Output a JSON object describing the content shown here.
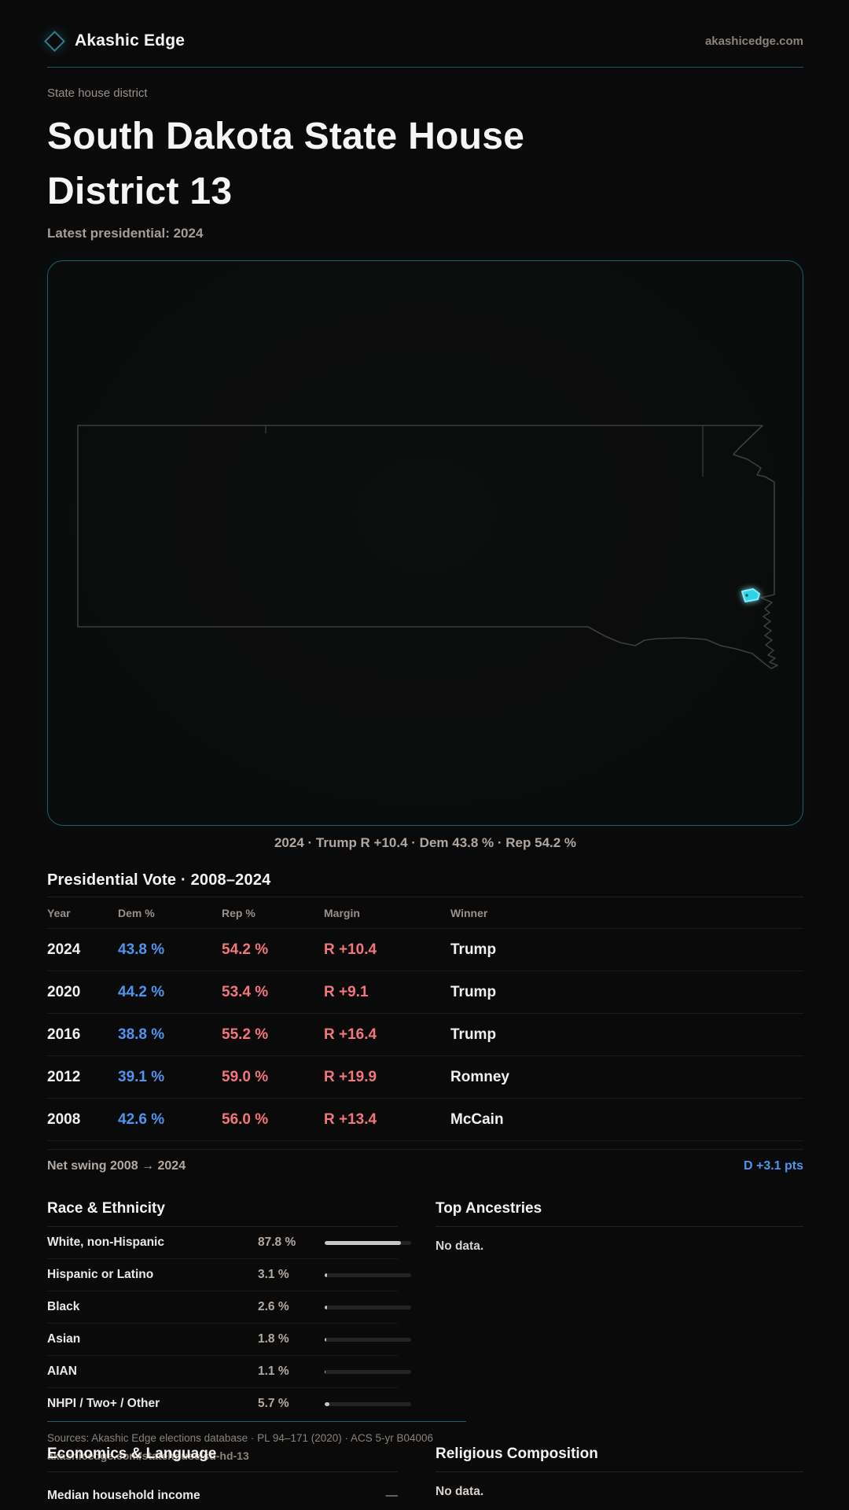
{
  "colors": {
    "background": "#0a0a0b",
    "accent_teal": "#1f5e6c",
    "district_highlight": "#2bd4ea",
    "dem_blue": "#4d95ee",
    "rep_red": "#f3767d"
  },
  "header": {
    "brand": "Akashic Edge",
    "site": "akashicedge.com"
  },
  "hero": {
    "eyebrow": "State house district",
    "title": "South Dakota State House District 13",
    "subtitle": "Latest presidential: 2024"
  },
  "map": {
    "caption": "2024 · Trump R +10.4 · Dem 43.8 % · Rep 54.2 %"
  },
  "presidential": {
    "heading": "Presidential Vote · 2008–2024",
    "columns": {
      "year": "Year",
      "dem": "Dem %",
      "rep": "Rep %",
      "margin": "Margin",
      "winner": "Winner"
    },
    "rows": [
      {
        "year": "2024",
        "dem": "43.8 %",
        "rep": "54.2 %",
        "margin": "R +10.4",
        "winner": "Trump"
      },
      {
        "year": "2020",
        "dem": "44.2 %",
        "rep": "53.4 %",
        "margin": "R +9.1",
        "winner": "Trump"
      },
      {
        "year": "2016",
        "dem": "38.8 %",
        "rep": "55.2 %",
        "margin": "R +16.4",
        "winner": "Trump"
      },
      {
        "year": "2012",
        "dem": "39.1 %",
        "rep": "59.0 %",
        "margin": "R +19.9",
        "winner": "Romney"
      },
      {
        "year": "2008",
        "dem": "42.6 %",
        "rep": "56.0 %",
        "margin": "R +13.4",
        "winner": "McCain"
      }
    ],
    "net_swing_label": "Net swing 2008 → 2024",
    "net_swing_value": "D +3.1 pts"
  },
  "race": {
    "heading": "Race & Ethnicity",
    "rows": [
      {
        "label": "White, non-Hispanic",
        "value": "87.8 %",
        "pct": 87.8
      },
      {
        "label": "Hispanic or Latino",
        "value": "3.1 %",
        "pct": 3.1
      },
      {
        "label": "Black",
        "value": "2.6 %",
        "pct": 2.6
      },
      {
        "label": "Asian",
        "value": "1.8 %",
        "pct": 1.8
      },
      {
        "label": "AIAN",
        "value": "1.1 %",
        "pct": 1.1
      },
      {
        "label": "NHPI / Two+ / Other",
        "value": "5.7 %",
        "pct": 5.7
      }
    ]
  },
  "ancestries": {
    "heading": "Top Ancestries",
    "empty": "No data."
  },
  "economics": {
    "heading": "Economics & Language",
    "rows": [
      {
        "label": "Median household income",
        "value": "—"
      }
    ]
  },
  "religion": {
    "heading": "Religious Composition",
    "empty": "No data."
  },
  "footer": {
    "sources": "Sources: Akashic Edge elections database · PL 94–171 (2020) · ACS 5-yr B04006",
    "permalink": "akashicedge.com/statehouse/sd-hd-13"
  }
}
